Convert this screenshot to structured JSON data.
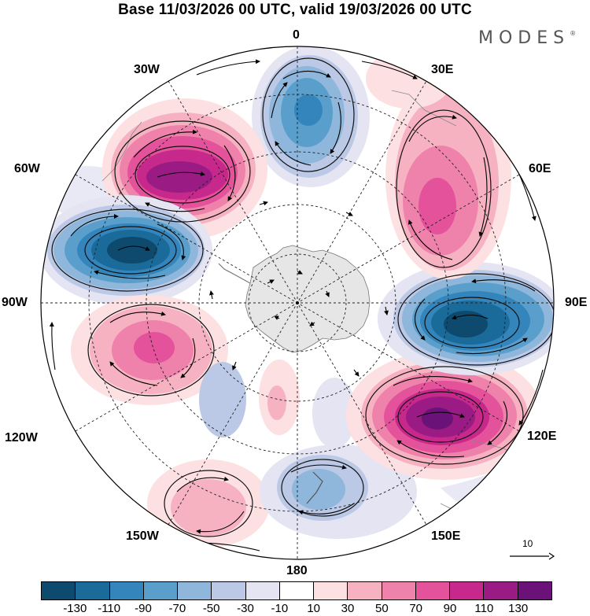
{
  "title": "Base 11/03/2026 00 UTC, valid 19/03/2026 00 UTC",
  "brand": "MODES",
  "brand_mark": "®",
  "longitude_labels": {
    "lon_0": "0",
    "lon_30e": "30E",
    "lon_60e": "60E",
    "lon_90e": "90E",
    "lon_120e": "120E",
    "lon_150e": "150E",
    "lon_180": "180",
    "lon_150w": "150W",
    "lon_120w": "120W",
    "lon_90w": "90W",
    "lon_60w": "60W",
    "lon_30w": "30W"
  },
  "vector_reference": "10",
  "colorbar": {
    "colors": [
      "#0d4a6e",
      "#1a6a9a",
      "#3485bb",
      "#5a9fcc",
      "#8fb6db",
      "#bcc9e6",
      "#e4e4f2",
      "#ffffff",
      "#fde0e2",
      "#f7b2c2",
      "#ef82ab",
      "#e3529a",
      "#c7288b",
      "#9a1b84",
      "#6a1277"
    ],
    "tick_labels": [
      "-130",
      "-110",
      "-90",
      "-70",
      "-50",
      "-30",
      "-10",
      "10",
      "30",
      "50",
      "70",
      "90",
      "110",
      "130"
    ]
  },
  "map_data": {
    "projection": "south-polar-stereographic",
    "field": "anomaly",
    "anomaly_centers": [
      {
        "lon": "0",
        "sign": "negative",
        "peak": -90
      },
      {
        "lon": "40W",
        "sign": "positive",
        "peak": 120
      },
      {
        "lon": "70W",
        "sign": "negative",
        "peak": -120
      },
      {
        "lon": "110W",
        "sign": "positive",
        "peak": 90
      },
      {
        "lon": "165W",
        "sign": "positive",
        "peak": 40
      },
      {
        "lon": "165E",
        "sign": "negative",
        "peak": -50
      },
      {
        "lon": "120E",
        "sign": "positive",
        "peak": 130
      },
      {
        "lon": "80E",
        "sign": "negative",
        "peak": -120
      },
      {
        "lon": "40E",
        "sign": "positive",
        "peak": 90
      }
    ]
  }
}
